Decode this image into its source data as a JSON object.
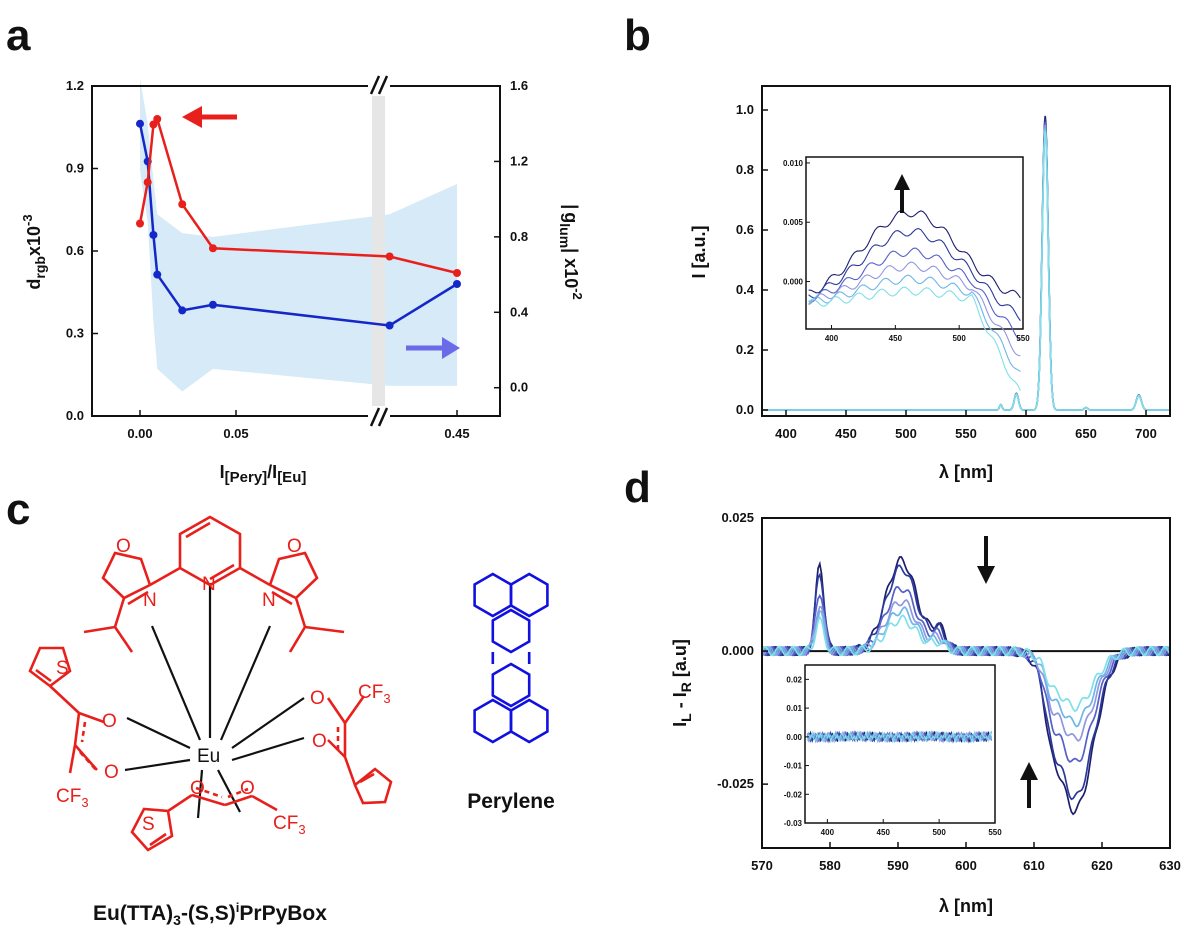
{
  "panel_labels": {
    "a": "a",
    "b": "b",
    "c": "c",
    "d": "d"
  },
  "colors": {
    "red": "#e8201c",
    "blue": "#1428c8",
    "navy": "#1e1e6e",
    "light_blue": "#cfe6f7",
    "cyan": "#5ad2e6",
    "perylene": "#1010e0"
  },
  "chart_data": [
    {
      "panel": "a",
      "type": "line",
      "xlabel": "I[Pery]/I[Eu]",
      "ylabel": "d_rgb x10^-3",
      "ylabel_parts": {
        "base": "d",
        "sub": "rgb",
        "mid": "x10",
        "sup": "-3"
      },
      "y2label": "|g_lum| x10^-2",
      "y2label_parts": {
        "bar": "|",
        "base": "g",
        "sub": "lum",
        "mid": "| x10",
        "sup": "-2"
      },
      "x_ticks": [
        "0.00",
        "0.05",
        "0.45"
      ],
      "y_ticks": [
        "0.0",
        "0.3",
        "0.6",
        "0.9",
        "1.2"
      ],
      "y2_ticks": [
        "0.0",
        "0.4",
        "0.8",
        "1.2",
        "1.6"
      ],
      "ylim": [
        0,
        1.2
      ],
      "y2lim": [
        -0.15,
        1.6
      ],
      "axis_break": "//",
      "x_positions": [
        0.0,
        0.004,
        0.007,
        0.009,
        0.022,
        0.038,
        0.13,
        0.45
      ],
      "series": [
        {
          "axis": "left",
          "color": "red",
          "x": [
            0.0,
            0.004,
            0.007,
            0.009,
            0.022,
            0.038,
            0.13,
            0.45
          ],
          "values": [
            0.7,
            0.85,
            1.06,
            1.08,
            0.77,
            0.61,
            0.58,
            0.52
          ]
        },
        {
          "axis": "right",
          "color": "blue",
          "x": [
            0.0,
            0.004,
            0.007,
            0.009,
            0.022,
            0.038,
            0.13,
            0.45
          ],
          "values": [
            1.4,
            1.2,
            0.81,
            0.6,
            0.41,
            0.44,
            0.33,
            0.55
          ],
          "band_upper": [
            1.64,
            1.4,
            1.1,
            0.92,
            0.82,
            0.8,
            0.92,
            1.08
          ],
          "band_lower": [
            1.15,
            0.88,
            0.35,
            0.1,
            -0.02,
            0.1,
            0.01,
            0.01
          ]
        }
      ]
    },
    {
      "panel": "b",
      "type": "line",
      "xlabel": "λ [nm]",
      "ylabel": "I [a.u.]",
      "x_ticks": [
        "400",
        "450",
        "500",
        "550",
        "600",
        "650",
        "700"
      ],
      "y_ticks": [
        "0.0",
        "0.2",
        "0.4",
        "0.6",
        "0.8",
        "1.0"
      ],
      "xlim": [
        380,
        720
      ],
      "ylim": [
        -0.02,
        1.08
      ],
      "peaks_nm": [
        579,
        592,
        616,
        650,
        694
      ],
      "inset": {
        "x_ticks": [
          "400",
          "450",
          "500",
          "550"
        ],
        "y_ticks": [
          "0.000",
          "0.005",
          "0.010"
        ],
        "xlim": [
          380,
          550
        ],
        "ylim": [
          -0.004,
          0.0105
        ]
      }
    },
    {
      "panel": "d",
      "type": "line",
      "xlabel": "λ [nm]",
      "ylabel": "I_L - I_R [a.u]",
      "ylabel_parts": {
        "a": "I",
        "asub": "L",
        "mid": " - I",
        "bsub": "R",
        "unit": " [a.u]"
      },
      "x_ticks": [
        "570",
        "580",
        "590",
        "600",
        "610",
        "620",
        "630"
      ],
      "y_ticks": [
        "0.025",
        "0.000",
        "-0.025"
      ],
      "xlim": [
        570,
        630
      ],
      "ylim": [
        -0.037,
        0.025
      ],
      "inset": {
        "x_ticks": [
          "400",
          "450",
          "500",
          "550"
        ],
        "y_ticks": [
          "0.02",
          "0.01",
          "0.00",
          "-0.01",
          "-0.02",
          "-0.03"
        ],
        "xlim": [
          380,
          550
        ],
        "ylim": [
          -0.03,
          0.025
        ]
      }
    }
  ],
  "structure": {
    "title": "Eu(TTA)",
    "title_sub3": "3",
    "title_mid": "-(S,S)",
    "title_sup": "i",
    "title_end": "PrPyBox",
    "perylene_name": "Perylene",
    "atoms": {
      "O": "O",
      "N": "N",
      "S": "S",
      "Eu": "Eu",
      "CF": "CF",
      "three": "3"
    }
  }
}
